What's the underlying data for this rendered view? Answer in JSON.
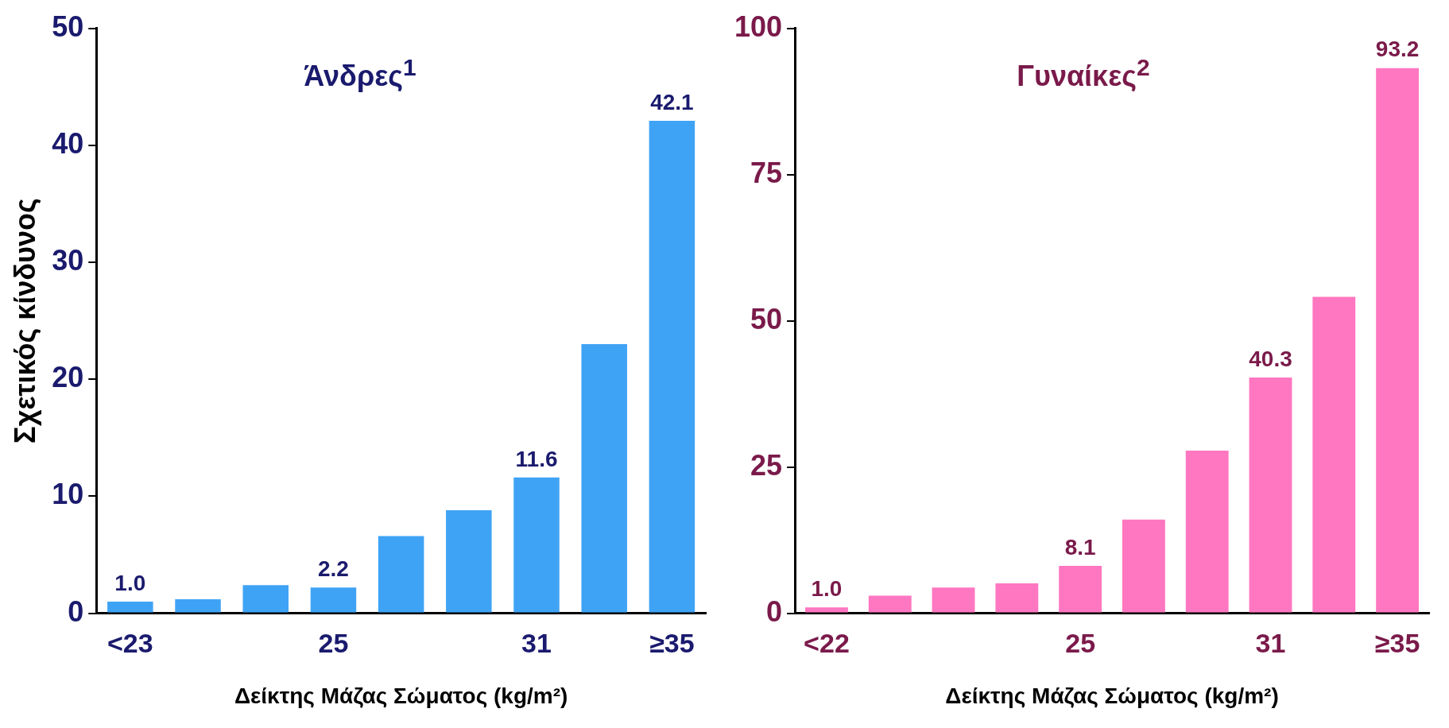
{
  "chart_data": [
    {
      "type": "bar",
      "title": "Άνδρες$^{1}$",
      "ylabel": "Σχετικός κίνδυνος",
      "xlabel": "Δείκτης Μάζας Σώματος (kg/m²)",
      "categories": [
        "<23",
        null,
        null,
        "25",
        null,
        null,
        "31",
        null,
        "≥35"
      ],
      "series": [
        {
          "color": "#3fa3f5",
          "values": [
            1.0,
            1.2,
            2.4,
            2.2,
            6.6,
            8.8,
            11.6,
            23.0,
            42.1
          ],
          "value_labels": [
            "1.0",
            null,
            null,
            "2.2",
            null,
            null,
            "11.6",
            null,
            "42.1"
          ]
        }
      ],
      "ylim": [
        0,
        50
      ],
      "yticks": [
        0,
        10,
        20,
        30,
        40,
        50
      ],
      "grid": false,
      "legend": false
    },
    {
      "type": "bar",
      "title": "Γυναίκες$^{2}$",
      "xlabel": "Δείκτης Μάζας Σώματος (kg/m²)",
      "categories": [
        "<22",
        null,
        null,
        null,
        "25",
        null,
        null,
        "31",
        null,
        "≥35"
      ],
      "series": [
        {
          "color": "#ff77c0",
          "values": [
            1.0,
            3.0,
            4.4,
            5.1,
            8.1,
            16.0,
            27.8,
            40.3,
            54.1,
            93.2
          ],
          "value_labels": [
            "1.0",
            null,
            null,
            null,
            "8.1",
            null,
            null,
            "40.3",
            null,
            "93.2"
          ]
        }
      ],
      "ylim": [
        0,
        100
      ],
      "yticks": [
        0,
        25,
        50,
        75,
        100
      ],
      "grid": false,
      "legend": false
    }
  ]
}
